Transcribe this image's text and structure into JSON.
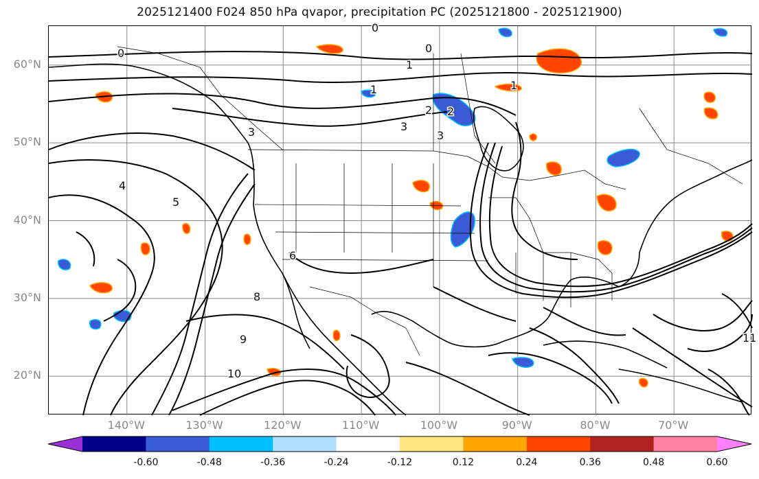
{
  "title": "2025121400 F024 850 hPa qvapor, precipitation PC (2025121800 - 2025121900)",
  "latitude_labels": [
    {
      "text": "60°N",
      "lat": 60
    },
    {
      "text": "50°N",
      "lat": 50
    },
    {
      "text": "40°N",
      "lat": 40
    },
    {
      "text": "30°N",
      "lat": 30
    },
    {
      "text": "20°N",
      "lat": 20
    }
  ],
  "longitude_labels": [
    {
      "text": "140°W",
      "lon": -140
    },
    {
      "text": "130°W",
      "lon": -130
    },
    {
      "text": "120°W",
      "lon": -120
    },
    {
      "text": "110°W",
      "lon": -110
    },
    {
      "text": "100°W",
      "lon": -100
    },
    {
      "text": "90°W",
      "lon": -90
    },
    {
      "text": "80°W",
      "lon": -80
    },
    {
      "text": "70°W",
      "lon": -70
    }
  ],
  "extent": {
    "lon_min": -150,
    "lon_max": -60,
    "lat_min": 15,
    "lat_max": 65
  },
  "colorbar": {
    "ticks": [
      "-0.60",
      "-0.48",
      "-0.36",
      "-0.24",
      "-0.12",
      "0.12",
      "0.24",
      "0.36",
      "0.48",
      "0.60"
    ],
    "bins": [
      {
        "color": "#9b30d9"
      },
      {
        "color": "#00008b"
      },
      {
        "color": "#3b5bd6"
      },
      {
        "color": "#00bfff"
      },
      {
        "color": "#b0e0ff"
      },
      {
        "color": "#ffffff"
      },
      {
        "color": "#ffe680"
      },
      {
        "color": "#ffa500"
      },
      {
        "color": "#ff4500"
      },
      {
        "color": "#b22222"
      },
      {
        "color": "#ff80a0"
      },
      {
        "color": "#ff80ff"
      }
    ]
  },
  "contour_labels": [
    "0",
    "0",
    "0",
    "1",
    "1",
    "1",
    "2",
    "2",
    "3",
    "3",
    "3",
    "4",
    "5",
    "6",
    "8",
    "9",
    "10",
    "11"
  ],
  "colors": {
    "contour": "#000000",
    "grid": "#888888",
    "positive": "#ff4500",
    "negative": "#3b5bd6"
  }
}
